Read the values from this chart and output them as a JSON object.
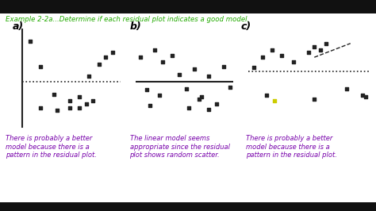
{
  "title": "Example 2-2a...Determine if each residual plot indicates a good model.",
  "title_color": "#22aa00",
  "background_color": "#ffffff",
  "border_color": "#000000",
  "subplot_labels": [
    "a)",
    "b)",
    "c)"
  ],
  "panel_a": {
    "x": [
      0.08,
      0.18,
      0.32,
      0.48,
      0.58,
      0.68,
      0.78,
      0.85,
      0.92
    ],
    "y": [
      0.58,
      0.22,
      -0.18,
      -0.28,
      -0.22,
      0.08,
      0.25,
      0.35,
      0.42
    ]
  },
  "panel_a_below": {
    "x": [
      0.18,
      0.35,
      0.48,
      0.58,
      0.65,
      0.72
    ],
    "y": [
      -0.38,
      -0.42,
      -0.38,
      -0.38,
      -0.32,
      -0.28
    ]
  },
  "panel_b": {
    "x": [
      0.05,
      0.12,
      0.2,
      0.28,
      0.38,
      0.45,
      0.52,
      0.6,
      0.68,
      0.75,
      0.83,
      0.9,
      0.97
    ],
    "y": [
      0.35,
      -0.12,
      0.45,
      0.28,
      0.38,
      0.1,
      -0.1,
      0.18,
      -0.22,
      0.08,
      -0.32,
      0.22,
      -0.08
    ]
  },
  "panel_b_below": {
    "x": [
      0.15,
      0.25,
      0.55,
      0.65,
      0.75
    ],
    "y": [
      -0.35,
      -0.2,
      -0.38,
      -0.25,
      -0.4
    ]
  },
  "panel_c_above": {
    "x": [
      0.05,
      0.12,
      0.2,
      0.28,
      0.38,
      0.5,
      0.55,
      0.6,
      0.65
    ],
    "y": [
      0.2,
      0.35,
      0.45,
      0.38,
      0.28,
      0.42,
      0.5,
      0.45,
      0.55
    ]
  },
  "panel_c_below": {
    "x": [
      0.15,
      0.55,
      0.95
    ],
    "y": [
      -0.2,
      -0.25,
      -0.2
    ]
  },
  "panel_c_special": {
    "x": [
      0.22
    ],
    "y": [
      -0.28
    ]
  },
  "panel_c_right": {
    "x": [
      0.82,
      0.98
    ],
    "y": [
      -0.1,
      -0.22
    ]
  },
  "text_a": "There is probably a better\nmodel because there is a\npattern in the residual plot.",
  "text_b": "The linear model seems\nappropriate since the residual\nplot shows random scatter.",
  "text_c": "There is probably a better\nmodel because there is a\npattern in the residual plot.",
  "text_color": "#7700aa",
  "dot_color": "#222222",
  "yellow_dot_color": "#cccc00",
  "line_color": "#222222"
}
